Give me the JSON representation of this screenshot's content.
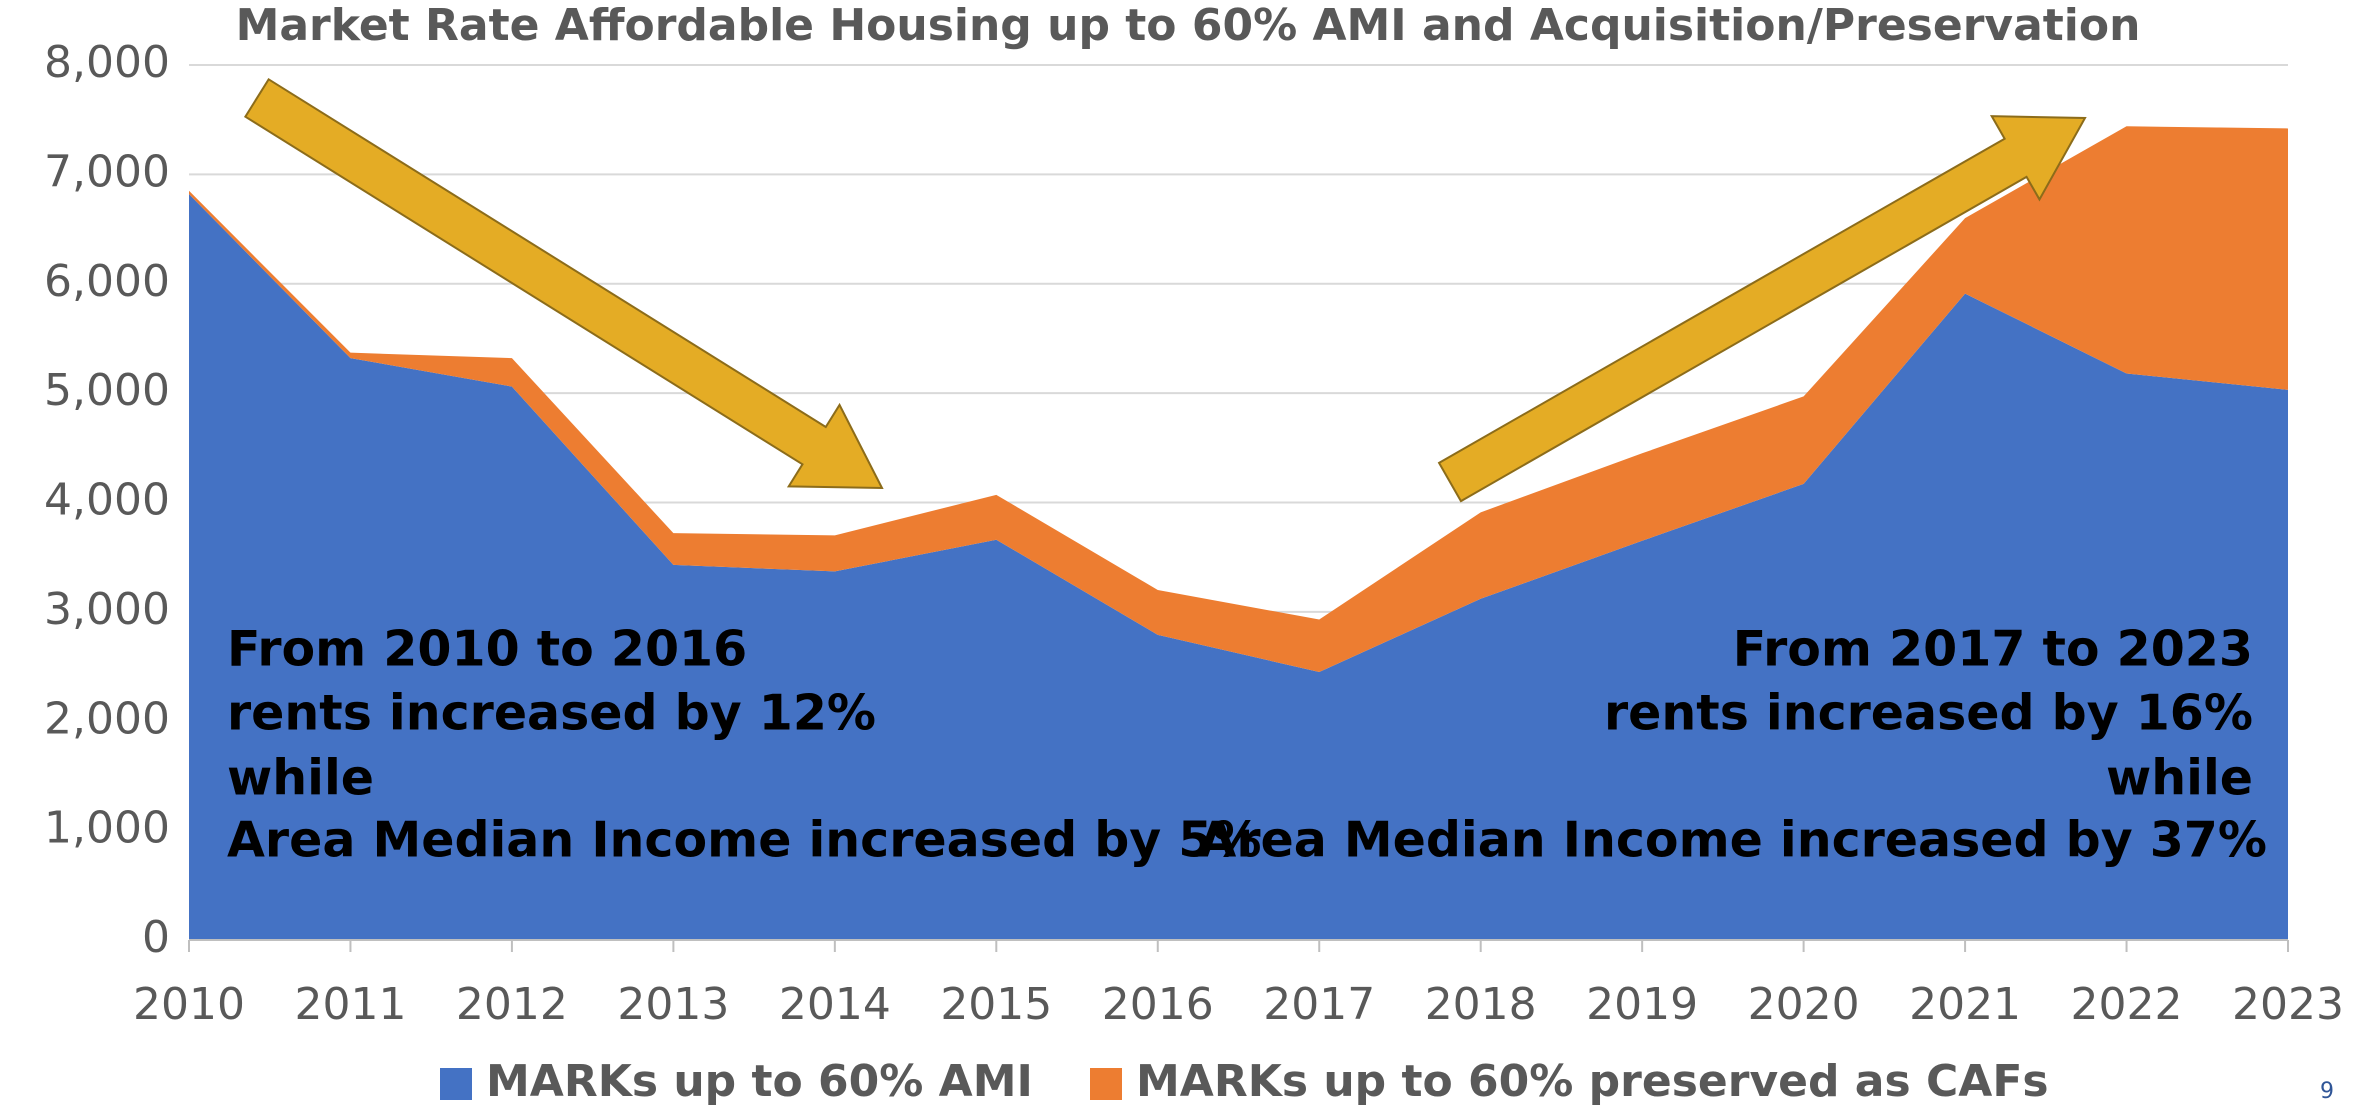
{
  "chart_data": {
    "type": "stacked_area",
    "title": "Market Rate Affordable Housing up to 60% AMI and Acquisition/Preservation",
    "categories": [
      "2010",
      "2011",
      "2012",
      "2013",
      "2014",
      "2015",
      "2016",
      "2017",
      "2018",
      "2019",
      "2020",
      "2021",
      "2022",
      "2023"
    ],
    "series": [
      {
        "name": "MARKs up to 60% AMI",
        "color": "#4472c4",
        "values": [
          6820,
          5320,
          5060,
          3430,
          3370,
          3660,
          2790,
          2450,
          3120,
          3650,
          4170,
          5910,
          5180,
          5030
        ]
      },
      {
        "name": "MARKs up to 60% preserved as CAFs",
        "color": "#ed7d31",
        "values": [
          30,
          50,
          260,
          290,
          330,
          410,
          410,
          480,
          790,
          800,
          800,
          690,
          2260,
          2390
        ]
      }
    ],
    "ylim": [
      0,
      8000
    ],
    "yticks": [
      0,
      {
        "value": 1000,
        "label": "1,000"
      },
      {
        "value": 2000,
        "label": "2,000"
      },
      {
        "value": 3000,
        "label": "3,000"
      },
      {
        "value": 4000,
        "label": "4,000"
      },
      {
        "value": 5000,
        "label": "5,000"
      },
      {
        "value": 6000,
        "label": "6,000"
      },
      {
        "value": 7000,
        "label": "7,000"
      },
      {
        "value": 8000,
        "label": "8,000"
      }
    ],
    "grid": true,
    "legend": "bottom",
    "annotations": [
      {
        "lines": [
          "From 2010 to 2016",
          "rents increased by 12%",
          "while",
          "Area Median Income increased by 5%"
        ]
      },
      {
        "lines": [
          "From 2017 to 2023",
          "rents increased by 16%",
          "while",
          "Area Median Income increased by 37%"
        ]
      }
    ]
  },
  "page_number": "9"
}
